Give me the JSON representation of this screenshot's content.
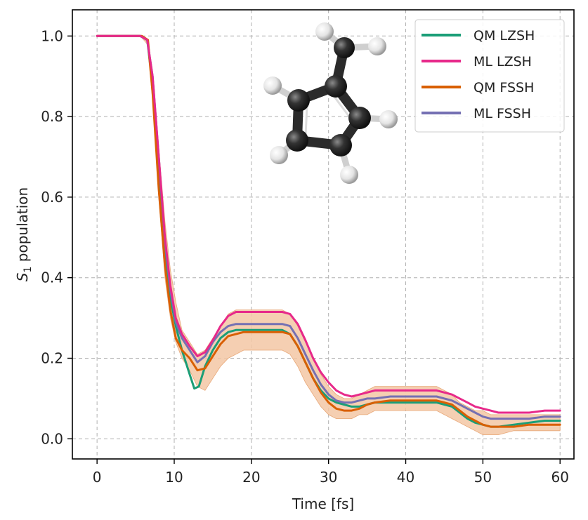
{
  "chart_data": {
    "type": "line",
    "xlabel": "Time [fs]",
    "ylabel_main": "S",
    "ylabel_sub": "1",
    "ylabel_rest": " population",
    "xlim": [
      -3.2,
      61.8
    ],
    "ylim": [
      -0.05,
      1.065
    ],
    "xticks": [
      0,
      10,
      20,
      30,
      40,
      50,
      60
    ],
    "yticks": [
      0.0,
      0.2,
      0.4,
      0.6,
      0.8,
      1.0
    ],
    "xtick_labels": [
      "0",
      "10",
      "20",
      "30",
      "40",
      "50",
      "60"
    ],
    "ytick_labels": [
      "0.0",
      "0.2",
      "0.4",
      "0.6",
      "0.8",
      "1.0"
    ],
    "grid": true,
    "legend_position": "top-right",
    "band": {
      "color": "#f3c7a4",
      "x": [
        0,
        5.6,
        6.5,
        7.2,
        8,
        8.8,
        9.5,
        10.2,
        11,
        12,
        13,
        14,
        15,
        16,
        17,
        18,
        19,
        20,
        22,
        24,
        25,
        26,
        27,
        28,
        29,
        30,
        31,
        32,
        33,
        34,
        35,
        36,
        38,
        40,
        42,
        44,
        45,
        46,
        47,
        48,
        49,
        50,
        51,
        52,
        54,
        56,
        58,
        60
      ],
      "upper": [
        1.0,
        1.0,
        0.99,
        0.9,
        0.72,
        0.54,
        0.42,
        0.34,
        0.27,
        0.24,
        0.21,
        0.22,
        0.25,
        0.28,
        0.31,
        0.32,
        0.32,
        0.32,
        0.32,
        0.32,
        0.31,
        0.28,
        0.24,
        0.2,
        0.16,
        0.13,
        0.11,
        0.1,
        0.1,
        0.11,
        0.12,
        0.13,
        0.13,
        0.13,
        0.13,
        0.13,
        0.12,
        0.11,
        0.09,
        0.08,
        0.07,
        0.07,
        0.06,
        0.06,
        0.06,
        0.06,
        0.06,
        0.06
      ],
      "lower": [
        1.0,
        1.0,
        0.98,
        0.84,
        0.6,
        0.4,
        0.3,
        0.24,
        0.2,
        0.17,
        0.13,
        0.12,
        0.15,
        0.18,
        0.2,
        0.21,
        0.22,
        0.22,
        0.22,
        0.22,
        0.21,
        0.18,
        0.14,
        0.11,
        0.08,
        0.06,
        0.05,
        0.05,
        0.05,
        0.06,
        0.06,
        0.07,
        0.07,
        0.07,
        0.07,
        0.07,
        0.06,
        0.05,
        0.04,
        0.03,
        0.02,
        0.01,
        0.01,
        0.01,
        0.02,
        0.02,
        0.02,
        0.02
      ]
    },
    "series": [
      {
        "name": "QM LZSH",
        "color": "#1b9e77",
        "x": [
          0,
          5.6,
          6.5,
          7.2,
          8,
          8.8,
          9.5,
          10.2,
          11,
          12,
          12.6,
          13.2,
          14,
          15,
          16,
          17,
          18,
          19,
          20,
          22,
          24,
          25,
          26,
          27,
          28,
          29,
          30,
          31,
          32,
          33,
          34,
          35,
          36,
          38,
          40,
          42,
          44,
          45,
          46,
          47,
          48,
          49,
          50,
          51,
          52,
          54,
          56,
          58,
          60
        ],
        "y": [
          1.0,
          1.0,
          0.99,
          0.88,
          0.66,
          0.46,
          0.35,
          0.28,
          0.22,
          0.16,
          0.125,
          0.13,
          0.18,
          0.22,
          0.25,
          0.265,
          0.27,
          0.27,
          0.27,
          0.27,
          0.27,
          0.26,
          0.23,
          0.19,
          0.15,
          0.12,
          0.1,
          0.09,
          0.085,
          0.08,
          0.08,
          0.085,
          0.09,
          0.09,
          0.09,
          0.09,
          0.09,
          0.085,
          0.08,
          0.065,
          0.05,
          0.04,
          0.035,
          0.03,
          0.03,
          0.035,
          0.04,
          0.045,
          0.045
        ]
      },
      {
        "name": "ML LZSH",
        "color": "#e7298a",
        "x": [
          0,
          5.6,
          6.5,
          7.2,
          8,
          8.8,
          9.5,
          10.2,
          11,
          12,
          13,
          14,
          15,
          16,
          17,
          18,
          19,
          20,
          22,
          24,
          25,
          26,
          27,
          28,
          29,
          30,
          31,
          32,
          33,
          34,
          35,
          36,
          38,
          40,
          42,
          44,
          45,
          46,
          47,
          48,
          49,
          50,
          51,
          52,
          54,
          56,
          58,
          60
        ],
        "y": [
          1.0,
          1.0,
          0.99,
          0.9,
          0.7,
          0.5,
          0.38,
          0.3,
          0.26,
          0.23,
          0.205,
          0.215,
          0.245,
          0.28,
          0.305,
          0.315,
          0.315,
          0.315,
          0.315,
          0.315,
          0.31,
          0.285,
          0.245,
          0.2,
          0.165,
          0.14,
          0.12,
          0.11,
          0.105,
          0.11,
          0.115,
          0.12,
          0.12,
          0.12,
          0.12,
          0.12,
          0.115,
          0.11,
          0.1,
          0.09,
          0.08,
          0.075,
          0.07,
          0.065,
          0.065,
          0.065,
          0.07,
          0.07
        ]
      },
      {
        "name": "QM FSSH",
        "color": "#d95f02",
        "x": [
          0,
          5.8,
          6.6,
          7.2,
          8,
          8.8,
          9.5,
          10.2,
          11,
          12,
          13,
          14,
          15,
          16,
          17,
          18,
          19,
          20,
          22,
          24,
          25,
          26,
          27,
          28,
          29,
          30,
          31,
          32,
          33,
          34,
          35,
          36,
          38,
          40,
          42,
          44,
          45,
          46,
          47,
          48,
          49,
          50,
          51,
          52,
          54,
          56,
          58,
          60
        ],
        "y": [
          1.0,
          1.0,
          0.99,
          0.86,
          0.62,
          0.43,
          0.32,
          0.25,
          0.22,
          0.2,
          0.17,
          0.175,
          0.205,
          0.235,
          0.255,
          0.26,
          0.265,
          0.265,
          0.265,
          0.265,
          0.26,
          0.23,
          0.19,
          0.15,
          0.115,
          0.09,
          0.075,
          0.07,
          0.07,
          0.075,
          0.085,
          0.09,
          0.095,
          0.095,
          0.095,
          0.095,
          0.09,
          0.085,
          0.07,
          0.055,
          0.045,
          0.035,
          0.03,
          0.03,
          0.03,
          0.035,
          0.035,
          0.035
        ]
      },
      {
        "name": "ML FSSH",
        "color": "#7570b3",
        "x": [
          0,
          5.6,
          6.5,
          7.2,
          8,
          8.8,
          9.5,
          10.2,
          11,
          12,
          13,
          14,
          15,
          16,
          17,
          18,
          19,
          20,
          22,
          24,
          25,
          26,
          27,
          28,
          29,
          30,
          31,
          32,
          33,
          34,
          35,
          36,
          38,
          40,
          42,
          44,
          45,
          46,
          47,
          48,
          49,
          50,
          51,
          52,
          54,
          56,
          58,
          60
        ],
        "y": [
          1.0,
          1.0,
          0.99,
          0.9,
          0.7,
          0.49,
          0.37,
          0.29,
          0.25,
          0.22,
          0.19,
          0.205,
          0.24,
          0.265,
          0.28,
          0.285,
          0.285,
          0.285,
          0.285,
          0.285,
          0.28,
          0.25,
          0.21,
          0.17,
          0.135,
          0.11,
          0.095,
          0.09,
          0.09,
          0.095,
          0.1,
          0.1,
          0.105,
          0.105,
          0.105,
          0.105,
          0.1,
          0.095,
          0.085,
          0.075,
          0.065,
          0.055,
          0.05,
          0.05,
          0.05,
          0.05,
          0.055,
          0.055
        ]
      }
    ]
  },
  "molecule": {
    "carbon_color": "#2b2b2b",
    "hydrogen_color": "#f2f2f2"
  }
}
